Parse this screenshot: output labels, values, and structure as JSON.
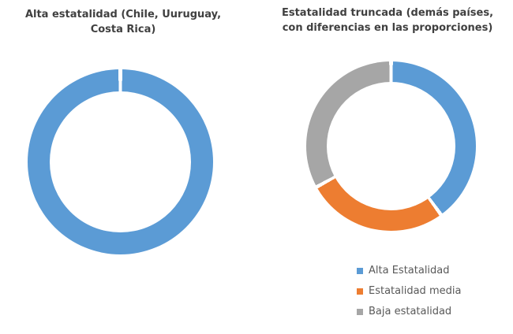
{
  "chart_data": [
    {
      "type": "pie",
      "subtype": "donut",
      "title": "Alta estatalidad (Chile, Uuruguay, Costa Rica)",
      "title_lines": [
        "Alta estatalidad (Chile, Uuruguay,",
        "Costa Rica)"
      ],
      "labels": [
        "Alta estatalidad"
      ],
      "values": [
        100
      ],
      "colors": [
        "#5B9BD5"
      ],
      "hole_ratio": 0.76,
      "separator_deg": 2.5,
      "legend": []
    },
    {
      "type": "pie",
      "subtype": "donut",
      "title": "Estatalidad truncada (demás países, con diferencias en las proporciones)",
      "title_lines": [
        "Estatalidad truncada (demás países,",
        "con diferencias en las proporciones)"
      ],
      "labels": [
        "Alta Estatalidad",
        "Estatalidad media",
        "Baja estatalidad"
      ],
      "values": [
        40,
        27,
        33
      ],
      "colors": [
        "#5B9BD5",
        "#ED7D31",
        "#A6A6A6"
      ],
      "hole_ratio": 0.76,
      "separator_deg": 2.5,
      "legend_position": "bottom-right",
      "legend": [
        "Alta Estatalidad",
        "Estatalidad media",
        "Baja estatalidad"
      ]
    }
  ]
}
